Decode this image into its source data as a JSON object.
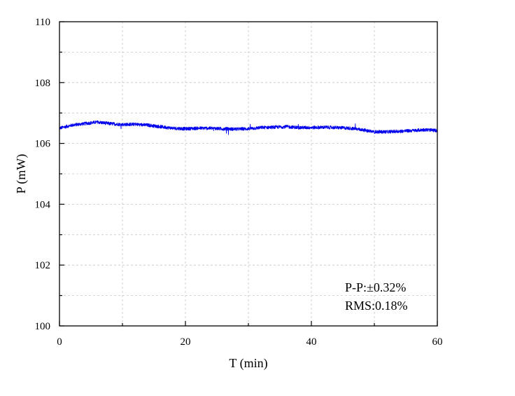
{
  "chart_data": {
    "type": "line",
    "title": "",
    "xlabel": "T (min)",
    "ylabel": "P (mW)",
    "xlim": [
      0,
      60
    ],
    "ylim": [
      100,
      110
    ],
    "x_ticks": [
      0,
      20,
      40,
      60
    ],
    "y_ticks": [
      100,
      102,
      104,
      106,
      108,
      110
    ],
    "x_tick_labels": [
      "0",
      "20",
      "40",
      "60"
    ],
    "y_tick_labels": [
      "100",
      "102",
      "104",
      "106",
      "108",
      "110"
    ],
    "grid": true,
    "series": [
      {
        "color": "#0000ee",
        "x": [
          0,
          2,
          4,
          6,
          8,
          10,
          12,
          14,
          16,
          18,
          20,
          22,
          24,
          26,
          28,
          30,
          32,
          34,
          36,
          38,
          40,
          42,
          44,
          46,
          48,
          50,
          52,
          54,
          56,
          58,
          60
        ],
        "y": [
          106.5,
          106.6,
          106.65,
          106.7,
          106.65,
          106.62,
          106.63,
          106.6,
          106.55,
          106.5,
          106.48,
          106.5,
          106.5,
          106.48,
          106.47,
          106.48,
          106.52,
          106.53,
          106.55,
          106.52,
          106.52,
          106.53,
          106.52,
          106.5,
          106.45,
          106.38,
          106.38,
          106.4,
          106.42,
          106.45,
          106.42
        ]
      }
    ],
    "annotations": [
      "P-P:±0.32%",
      "RMS:0.18%"
    ]
  }
}
